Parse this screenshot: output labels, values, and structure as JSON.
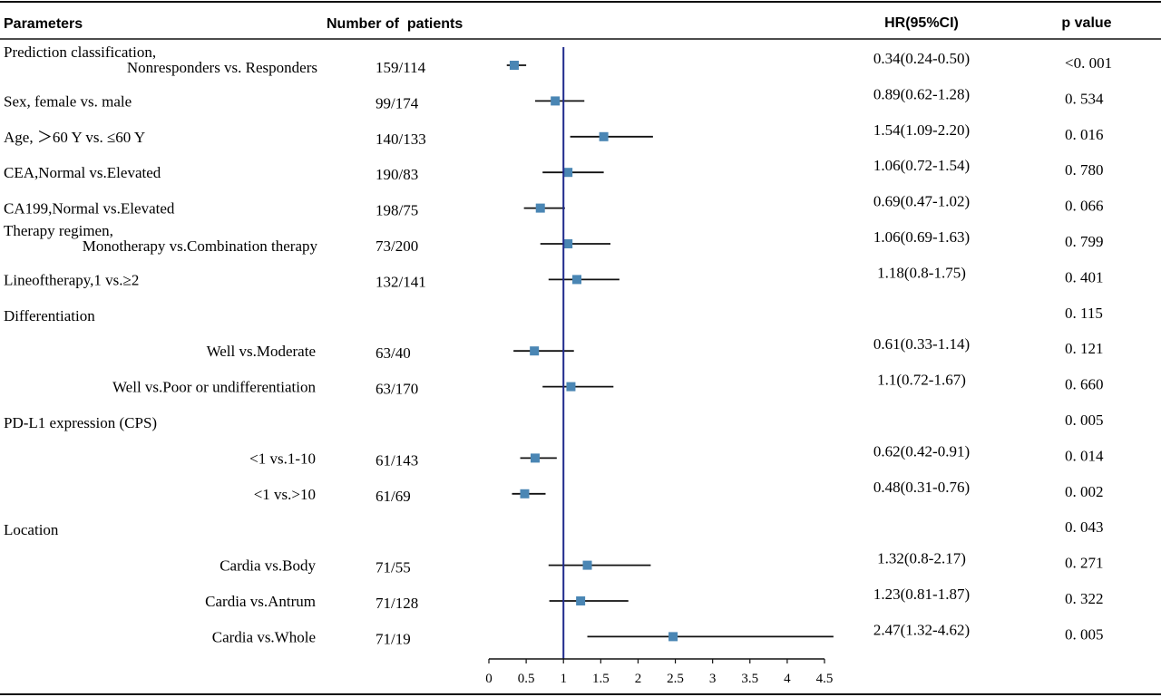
{
  "headers": {
    "parameters": "Parameters",
    "patients": "Number of  patients",
    "hr": "HR(95%CI)",
    "p": "p value"
  },
  "colors": {
    "marker": "#4a86b4",
    "reference_line": "#1f2a8c",
    "ci_line": "#111111"
  },
  "chart_data": {
    "type": "forest",
    "x_ticks": [
      "0",
      "0.5",
      "1",
      "1.5",
      "2",
      "2.5",
      "3",
      "3.5",
      "4",
      "4.5"
    ],
    "xlim": [
      0,
      4.5
    ],
    "reference": 1,
    "rows": [
      {
        "label": [
          "Prediction classification,",
          "Nonresponders vs. Responders"
        ],
        "n": "159/114",
        "hr_text": "0.34(0.24-0.50)",
        "p": "<0. 001",
        "hr": 0.34,
        "lo": 0.24,
        "hi": 0.5
      },
      {
        "label": [
          "Sex, female vs. male"
        ],
        "n": "99/174",
        "hr_text": "0.89(0.62-1.28)",
        "p": "0. 534",
        "hr": 0.89,
        "lo": 0.62,
        "hi": 1.28
      },
      {
        "label": [
          "Age, ＞60 Y vs. ≤60 Y"
        ],
        "n": "140/133",
        "hr_text": "1.54(1.09-2.20)",
        "p": "0. 016",
        "hr": 1.54,
        "lo": 1.09,
        "hi": 2.2
      },
      {
        "label": [
          "CEA,Normal vs.Elevated"
        ],
        "n": "190/83",
        "hr_text": "1.06(0.72-1.54)",
        "p": "0. 780",
        "hr": 1.06,
        "lo": 0.72,
        "hi": 1.54
      },
      {
        "label": [
          "CA199,Normal vs.Elevated"
        ],
        "n": "198/75",
        "hr_text": "0.69(0.47-1.02)",
        "p": "0. 066",
        "hr": 0.69,
        "lo": 0.47,
        "hi": 1.02
      },
      {
        "label": [
          "Therapy regimen,",
          "Monotherapy vs.Combination therapy"
        ],
        "n": "73/200",
        "hr_text": "1.06(0.69-1.63)",
        "p": "0. 799",
        "hr": 1.06,
        "lo": 0.69,
        "hi": 1.63
      },
      {
        "label": [
          "Lineoftherapy,1 vs.≥2"
        ],
        "n": "132/141",
        "hr_text": "1.18(0.8-1.75)",
        "p": "0. 401",
        "hr": 1.18,
        "lo": 0.8,
        "hi": 1.75
      },
      {
        "label": [
          "Differentiation"
        ],
        "n": "",
        "hr_text": "",
        "p": "0. 115",
        "hr": null,
        "lo": null,
        "hi": null
      },
      {
        "label": [
          "Well vs.Moderate"
        ],
        "indent": true,
        "n": "63/40",
        "hr_text": "0.61(0.33-1.14)",
        "p": "0. 121",
        "hr": 0.61,
        "lo": 0.33,
        "hi": 1.14
      },
      {
        "label": [
          "Well vs.Poor or undifferentiation"
        ],
        "indent": true,
        "n": "63/170",
        "hr_text": "1.1(0.72-1.67)",
        "p": "0. 660",
        "hr": 1.1,
        "lo": 0.72,
        "hi": 1.67
      },
      {
        "label": [
          "PD-L1 expression (CPS)"
        ],
        "n": "",
        "hr_text": "",
        "p": "0. 005",
        "hr": null,
        "lo": null,
        "hi": null
      },
      {
        "label": [
          "<1 vs.1-10"
        ],
        "indent": true,
        "n": "61/143",
        "hr_text": "0.62(0.42-0.91)",
        "p": "0. 014",
        "hr": 0.62,
        "lo": 0.42,
        "hi": 0.91
      },
      {
        "label": [
          "<1 vs.>10"
        ],
        "indent": true,
        "n": "61/69",
        "hr_text": "0.48(0.31-0.76)",
        "p": "0. 002",
        "hr": 0.48,
        "lo": 0.31,
        "hi": 0.76
      },
      {
        "label": [
          "Location"
        ],
        "n": "",
        "hr_text": "",
        "p": "0. 043",
        "hr": null,
        "lo": null,
        "hi": null
      },
      {
        "label": [
          "Cardia vs.Body"
        ],
        "indent": true,
        "n": "71/55",
        "hr_text": "1.32(0.8-2.17)",
        "p": "0. 271",
        "hr": 1.32,
        "lo": 0.8,
        "hi": 2.17
      },
      {
        "label": [
          "Cardia vs.Antrum"
        ],
        "indent": true,
        "n": "71/128",
        "hr_text": "1.23(0.81-1.87)",
        "p": "0. 322",
        "hr": 1.23,
        "lo": 0.81,
        "hi": 1.87
      },
      {
        "label": [
          "Cardia vs.Whole"
        ],
        "indent": true,
        "n": "71/19",
        "hr_text": "2.47(1.32-4.62)",
        "p": "0. 005",
        "hr": 2.47,
        "lo": 1.32,
        "hi": 4.62
      }
    ]
  }
}
